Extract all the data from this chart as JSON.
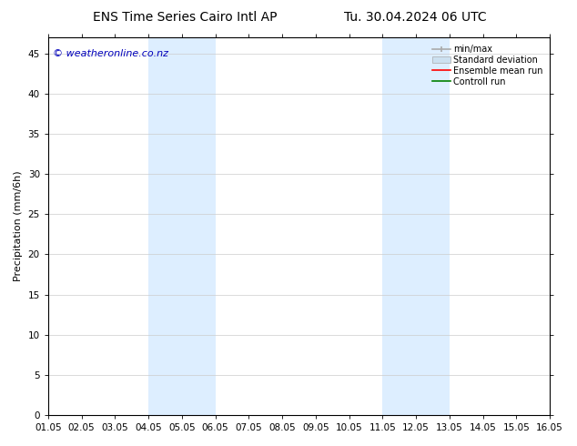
{
  "title_left": "ENS Time Series Cairo Intl AP",
  "title_right": "Tu. 30.04.2024 06 UTC",
  "ylabel": "Precipitation (mm/6h)",
  "watermark": "© weatheronline.co.nz",
  "xlim": [
    0,
    15
  ],
  "ylim": [
    0,
    47
  ],
  "yticks": [
    0,
    5,
    10,
    15,
    20,
    25,
    30,
    35,
    40,
    45
  ],
  "xtick_labels": [
    "01.05",
    "02.05",
    "03.05",
    "04.05",
    "05.05",
    "06.05",
    "07.05",
    "08.05",
    "09.05",
    "10.05",
    "11.05",
    "12.05",
    "13.05",
    "14.05",
    "15.05",
    "16.05"
  ],
  "xtick_positions": [
    0,
    1,
    2,
    3,
    4,
    5,
    6,
    7,
    8,
    9,
    10,
    11,
    12,
    13,
    14,
    15
  ],
  "shaded_regions": [
    {
      "x_start": 3.0,
      "x_end": 5.0,
      "color": "#ddeeff"
    },
    {
      "x_start": 10.0,
      "x_end": 12.0,
      "color": "#ddeeff"
    }
  ],
  "legend_items": [
    {
      "label": "min/max",
      "color": "#aaaaaa"
    },
    {
      "label": "Standard deviation",
      "color": "#cce0f0"
    },
    {
      "label": "Ensemble mean run",
      "color": "red"
    },
    {
      "label": "Controll run",
      "color": "green"
    }
  ],
  "bg_color": "#ffffff",
  "plot_bg_color": "#ffffff",
  "border_color": "#000000",
  "tick_color": "#000000",
  "watermark_color": "#0000bb",
  "title_fontsize": 10,
  "axis_label_fontsize": 8,
  "tick_fontsize": 7.5,
  "watermark_fontsize": 8,
  "legend_fontsize": 7
}
